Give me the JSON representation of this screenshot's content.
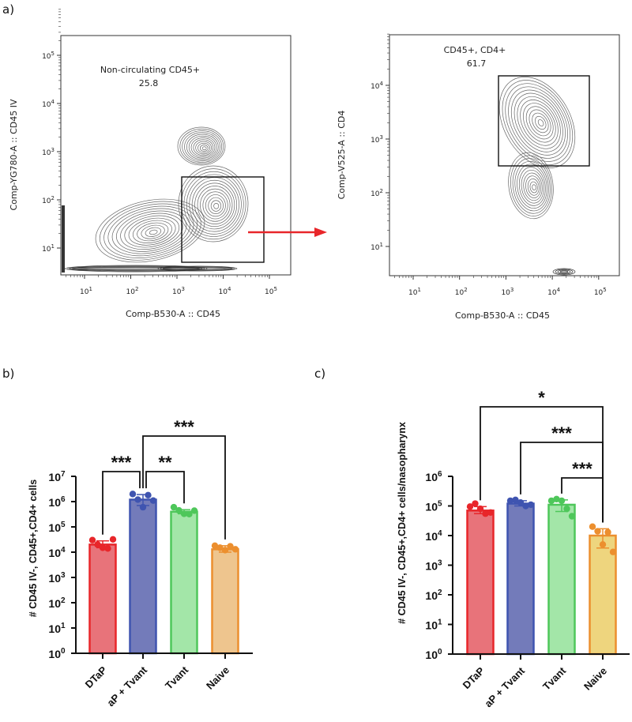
{
  "panel_labels": {
    "a": "a)",
    "b": "b)",
    "c": "c)"
  },
  "flow_plots": [
    {
      "gate_label": "Non-circulating CD45+",
      "gate_value": "25.8",
      "xlabel": "Comp-B530-A :: CD45",
      "ylabel": "Comp-YG780-A :: CD45 IV",
      "x_tick_exponents": [
        1,
        2,
        3,
        4,
        5
      ],
      "y_tick_exponents": [
        1,
        2,
        3,
        4,
        5
      ]
    },
    {
      "gate_label": "CD45+, CD4+",
      "gate_value": "61.7",
      "xlabel": "Comp-B530-A :: CD45",
      "ylabel": "Comp-V525-A :: CD4",
      "x_tick_exponents": [
        1,
        2,
        3,
        4,
        5
      ],
      "y_tick_exponents": [
        1,
        2,
        3,
        4
      ]
    }
  ],
  "arrow_color": "#e8262a",
  "chart_data": [
    {
      "type": "bar",
      "panel": "b",
      "yscale": "log",
      "ylim_exponents": [
        0,
        7
      ],
      "ylabel": "# CD45 IV-, CD45+,CD4+ cells",
      "categories": [
        "DTaP",
        "aP + Tvant",
        "Tvant",
        "Naive"
      ],
      "values": [
        20000,
        1200000,
        400000,
        13000
      ],
      "error_high": [
        28000,
        1900000,
        480000,
        18000
      ],
      "error_low": [
        15000,
        700000,
        330000,
        10000
      ],
      "points": [
        [
          30000,
          20000,
          15000,
          14000,
          32000
        ],
        [
          2000000,
          1200000,
          600000,
          1800000,
          1100000
        ],
        [
          600000,
          450000,
          330000,
          320000,
          440000
        ],
        [
          18000,
          15000,
          12000,
          17000,
          13000
        ]
      ],
      "colors": {
        "fill": [
          "#e8737a",
          "#737bba",
          "#a3e6a8",
          "#eec58e"
        ],
        "stroke": [
          "#e8262a",
          "#3f54b0",
          "#4ec75a",
          "#ec8f2e"
        ]
      },
      "comparisons": [
        {
          "from": 0,
          "to": 1,
          "label": "***"
        },
        {
          "from": 1,
          "to": 2,
          "label": "**"
        },
        {
          "from": 1,
          "to": 3,
          "label": "***"
        }
      ]
    },
    {
      "type": "bar",
      "panel": "c",
      "yscale": "log",
      "ylim_exponents": [
        0,
        6
      ],
      "ylabel": "# CD45 IV-, CD45+,CD4+ cells/nasopharynx",
      "categories": [
        "DTaP",
        "aP + Tvant",
        "Tvant",
        "Naive"
      ],
      "values": [
        70000,
        120000,
        110000,
        10000
      ],
      "error_high": [
        95000,
        150000,
        160000,
        17000
      ],
      "error_low": [
        55000,
        100000,
        65000,
        3800
      ],
      "points": [
        [
          95000,
          120000,
          80000,
          55000,
          60000
        ],
        [
          150000,
          160000,
          130000,
          100000,
          110000
        ],
        [
          150000,
          170000,
          150000,
          80000,
          45000
        ],
        [
          20000,
          14000,
          5000,
          13000,
          2800
        ]
      ],
      "colors": {
        "fill": [
          "#e8737a",
          "#737bba",
          "#a3e6a8",
          "#eed57e"
        ],
        "stroke": [
          "#e8262a",
          "#3f54b0",
          "#4ec75a",
          "#ec8f2e"
        ]
      },
      "comparisons": [
        {
          "from": 0,
          "to": 3,
          "label": "*"
        },
        {
          "from": 1,
          "to": 3,
          "label": "***"
        },
        {
          "from": 2,
          "to": 3,
          "label": "***"
        }
      ]
    }
  ]
}
